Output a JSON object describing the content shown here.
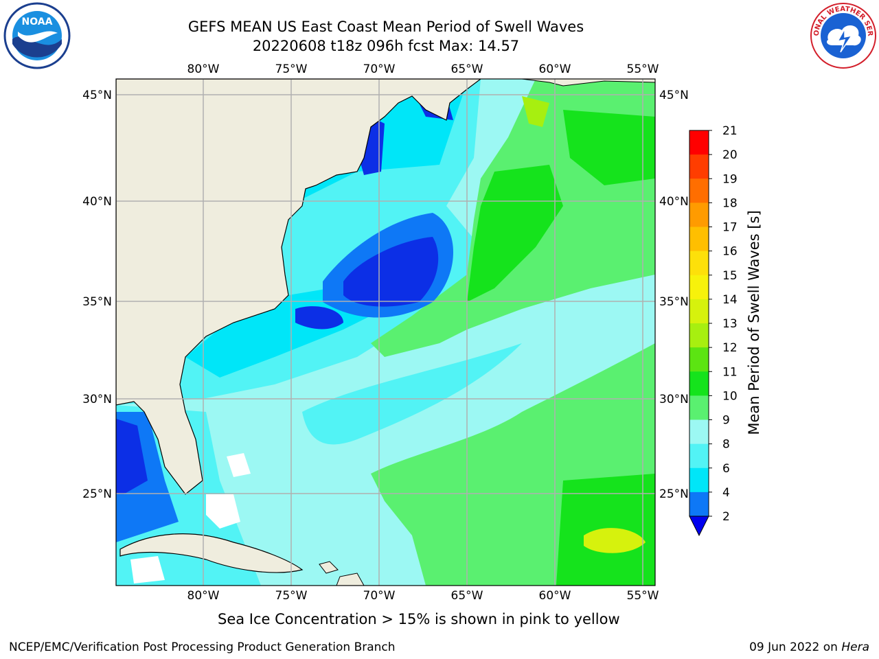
{
  "header": {
    "title_line1": "GEFS MEAN US East Coast Mean Period of Swell Waves",
    "title_line2": "20220608 t18z 096h fcst   Max: 14.57"
  },
  "logos": {
    "left": "noaa-logo",
    "left_text": "NOAA",
    "right": "nws-logo",
    "right_text": "NATIONAL WEATHER SERVICE"
  },
  "map": {
    "lon_labels": [
      "80°W",
      "75°W",
      "70°W",
      "65°W",
      "60°W",
      "55°W"
    ],
    "lat_labels": [
      "45°N",
      "40°N",
      "35°N",
      "30°N",
      "25°N"
    ],
    "land_color": "#efedde",
    "grid_color": "#b0b0b0"
  },
  "colorbar": {
    "label": "Mean Period of Swell Waves [s]",
    "ticks": [
      "2",
      "4",
      "6",
      "8",
      "9",
      "10",
      "11",
      "12",
      "13",
      "14",
      "15",
      "16",
      "17",
      "18",
      "19",
      "20",
      "21"
    ],
    "colors": [
      "#0c2fe6",
      "#0e78f6",
      "#00e6f8",
      "#52f3f5",
      "#9cf8f3",
      "#5af070",
      "#15e31c",
      "#5ce412",
      "#a7ef10",
      "#d6f20d",
      "#f7f20b",
      "#fde00a",
      "#ffbf00",
      "#ff9b00",
      "#ff6e00",
      "#ff3d00",
      "#ff0000"
    ],
    "under_color": "#0000ee"
  },
  "footer": {
    "ice_note": "Sea Ice Concentration > 15% is shown in pink to yellow",
    "left": "NCEP/EMC/Verification Post Processing Product Generation Branch",
    "date": "09 Jun 2022 on ",
    "machine": "Hera"
  }
}
